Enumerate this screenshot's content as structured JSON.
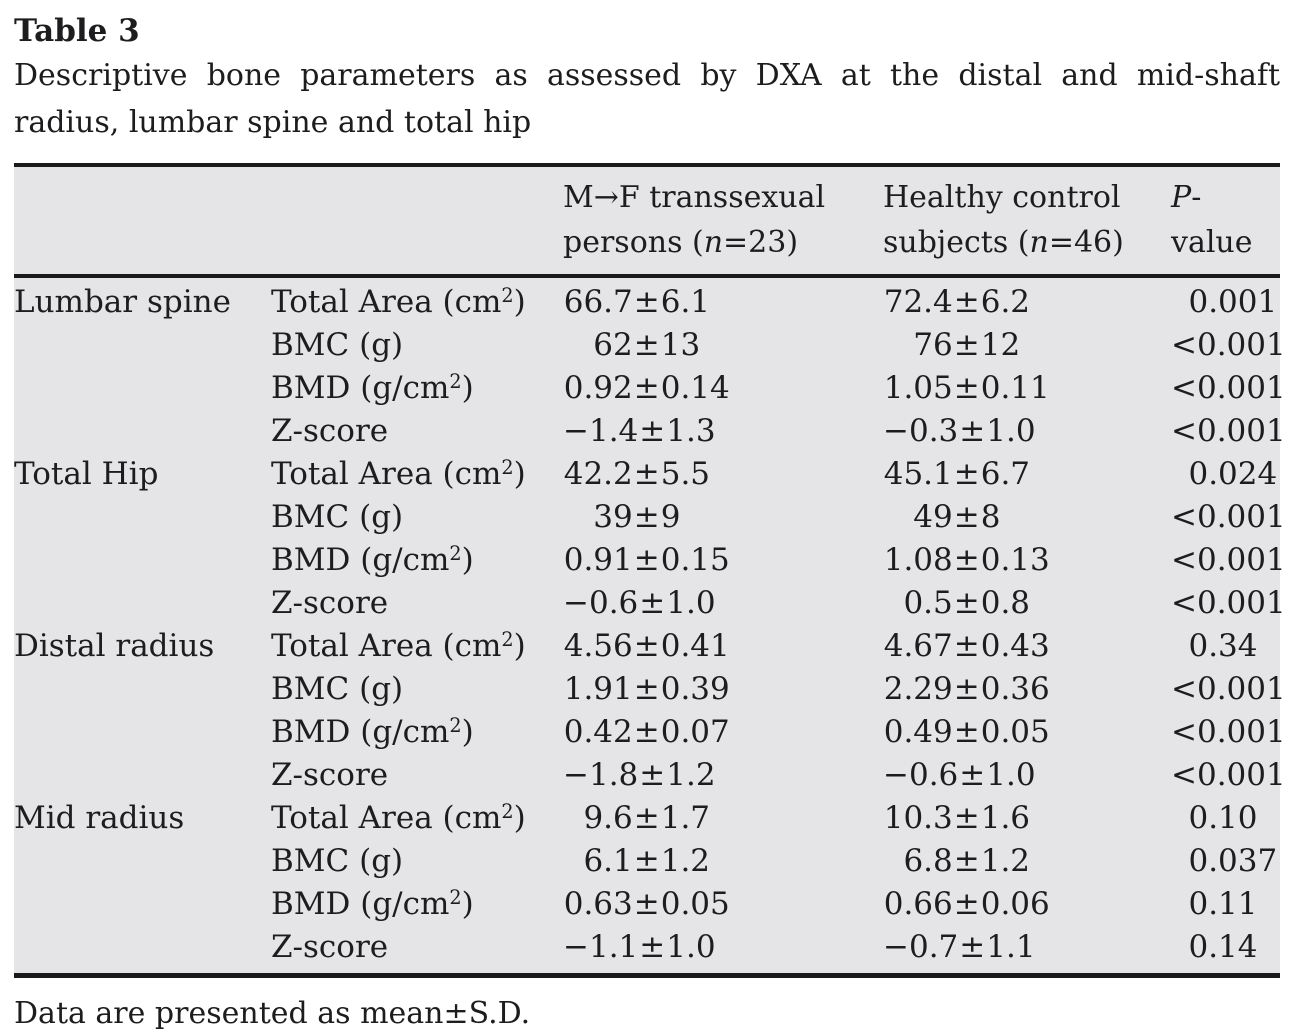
{
  "page": {
    "label": "Table 3",
    "caption": "Descriptive bone parameters as assessed by DXA at the distal and mid-shaft radius, lumbar spine and total hip",
    "footnote": "Data are presented as mean±S.D."
  },
  "colors": {
    "table_background": "#e5e5e7",
    "rule": "#1a1a1a",
    "text": "#1d1d1f",
    "page_background": "#ffffff"
  },
  "table": {
    "headers": {
      "group1": {
        "pre": "M→F transsexual persons (",
        "n": "n",
        "post": "=23)"
      },
      "group2": {
        "pre": "Healthy control subjects (",
        "n": "n",
        "post": "=46)"
      },
      "pvalue": {
        "italic": "P",
        "rest": "-value"
      }
    },
    "groups": [
      {
        "region": "Lumbar spine",
        "rows": [
          {
            "parameter": "Total Area (cm²)",
            "g1": "66.7±6.1",
            "g2": "72.4±6.2",
            "p": "0.001"
          },
          {
            "parameter": "BMC (g)",
            "g1": "62±13",
            "g2": "76±12",
            "p": "<0.001"
          },
          {
            "parameter": "BMD (g/cm²)",
            "g1": "0.92±0.14",
            "g2": "1.05±0.11",
            "p": "<0.001"
          },
          {
            "parameter": "Z-score",
            "g1": "−1.4±1.3",
            "g2": "−0.3±1.0",
            "p": "<0.001"
          }
        ]
      },
      {
        "region": "Total Hip",
        "rows": [
          {
            "parameter": "Total Area (cm²)",
            "g1": "42.2±5.5",
            "g2": "45.1±6.7",
            "p": "0.024"
          },
          {
            "parameter": "BMC (g)",
            "g1": "39±9",
            "g2": "49±8",
            "p": "<0.001"
          },
          {
            "parameter": "BMD (g/cm²)",
            "g1": "0.91±0.15",
            "g2": "1.08±0.13",
            "p": "<0.001"
          },
          {
            "parameter": "Z-score",
            "g1": "−0.6±1.0",
            "g2": "0.5±0.8",
            "p": "<0.001"
          }
        ]
      },
      {
        "region": "Distal radius",
        "rows": [
          {
            "parameter": "Total Area (cm²)",
            "g1": "4.56±0.41",
            "g2": "4.67±0.43",
            "p": "0.34"
          },
          {
            "parameter": "BMC (g)",
            "g1": "1.91±0.39",
            "g2": "2.29±0.36",
            "p": "<0.001"
          },
          {
            "parameter": "BMD (g/cm²)",
            "g1": "0.42±0.07",
            "g2": "0.49±0.05",
            "p": "<0.001"
          },
          {
            "parameter": "Z-score",
            "g1": "−1.8±1.2",
            "g2": "−0.6±1.0",
            "p": "<0.001"
          }
        ]
      },
      {
        "region": "Mid radius",
        "rows": [
          {
            "parameter": "Total Area (cm²)",
            "g1": "9.6±1.7",
            "g2": "10.3±1.6",
            "p": "0.10"
          },
          {
            "parameter": "BMC (g)",
            "g1": "6.1±1.2",
            "g2": "6.8±1.2",
            "p": "0.037"
          },
          {
            "parameter": "BMD (g/cm²)",
            "g1": "0.63±0.05",
            "g2": "0.66±0.06",
            "p": "0.11"
          },
          {
            "parameter": "Z-score",
            "g1": "−1.1±1.0",
            "g2": "−0.7±1.1",
            "p": "0.14"
          }
        ]
      }
    ]
  }
}
